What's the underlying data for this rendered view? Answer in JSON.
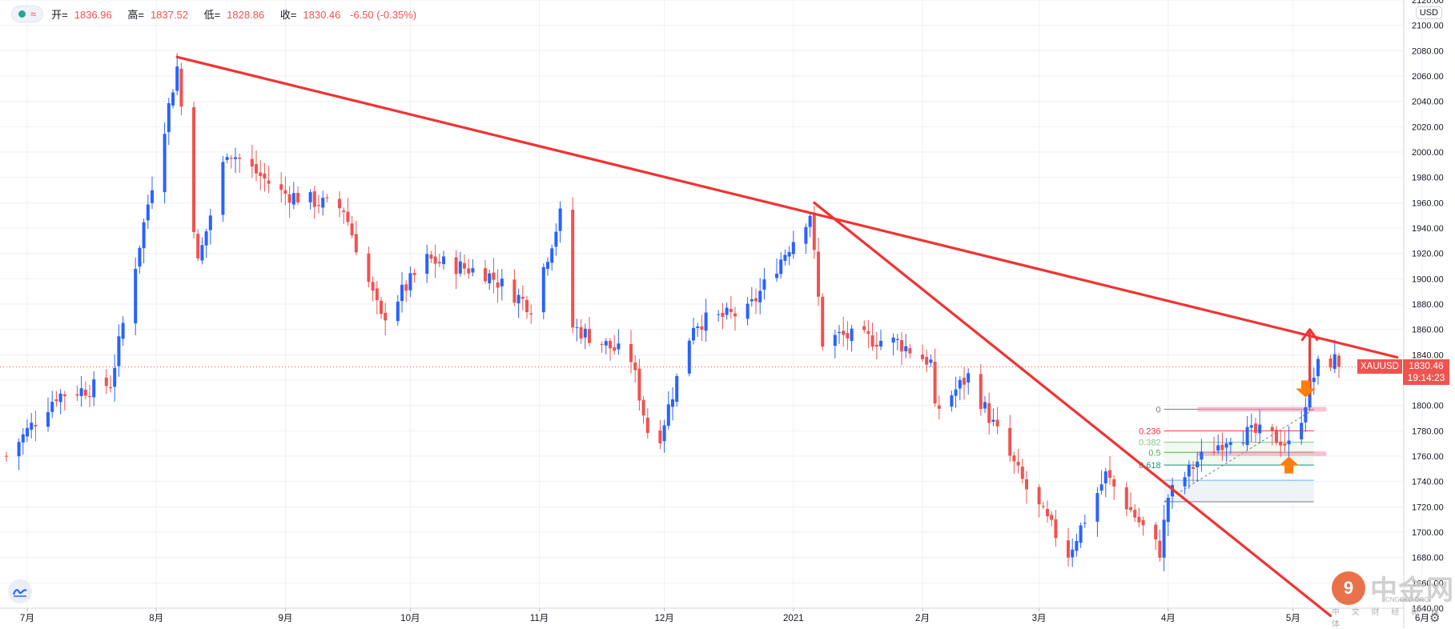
{
  "header": {
    "labels": {
      "open": "开=",
      "high": "高=",
      "low": "低=",
      "close": "收="
    },
    "open": "1836.96",
    "high": "1837.52",
    "low": "1828.86",
    "close": "1830.46",
    "change": "-6.50 (-0.35%)"
  },
  "currency_label": "USD",
  "last_price": {
    "symbol": "XAUUSD",
    "price": "1830.46",
    "countdown": "19:14:23"
  },
  "watermark": {
    "logo_char": "9",
    "name": "中金网",
    "sub": "中 文 财 经 新 媒 体",
    "en": "CNGOLD.ORG"
  },
  "colors": {
    "up": "#2962ff",
    "down": "#ef5350",
    "trendline": "#f23232",
    "grid": "#eef1f6",
    "axis_text": "#131722"
  },
  "chart_data": {
    "type": "candlestick",
    "symbol": "XAUUSD",
    "yaxis": {
      "ylim": [
        1640,
        2120
      ],
      "ticks": [
        "1640.00",
        "1660.00",
        "1680.00",
        "1700.00",
        "1720.00",
        "1740.00",
        "1760.00",
        "1780.00",
        "1800.00",
        "1820.00",
        "1840.00",
        "1860.00",
        "1880.00",
        "1900.00",
        "1920.00",
        "1940.00",
        "1960.00",
        "1980.00",
        "2000.00",
        "2020.00",
        "2040.00",
        "2060.00",
        "2080.00",
        "2100.00",
        "2120.00"
      ]
    },
    "xaxis": {
      "ticks": [
        {
          "label": "7月",
          "date": "2020-07-01"
        },
        {
          "label": "8月",
          "date": "2020-08-01"
        },
        {
          "label": "9月",
          "date": "2020-09-01"
        },
        {
          "label": "10月",
          "date": "2020-10-01"
        },
        {
          "label": "11月",
          "date": "2020-11-01"
        },
        {
          "label": "12月",
          "date": "2020-12-01"
        },
        {
          "label": "2021",
          "date": "2021-01-01"
        },
        {
          "label": "2月",
          "date": "2021-02-01"
        },
        {
          "label": "3月",
          "date": "2021-03-01"
        },
        {
          "label": "4月",
          "date": "2021-04-01"
        },
        {
          "label": "5月",
          "date": "2021-05-01"
        },
        {
          "label": "6月",
          "date": "2021-06-01"
        }
      ]
    },
    "anchors": [
      {
        "date": "2020-06-26",
        "close": 1760
      },
      {
        "date": "2020-07-08",
        "close": 1808
      },
      {
        "date": "2020-07-21",
        "close": 1817
      },
      {
        "date": "2020-07-31",
        "close": 1975
      },
      {
        "date": "2020-08-06",
        "close": 2067
      },
      {
        "date": "2020-08-11",
        "close": 1912
      },
      {
        "date": "2020-08-18",
        "close": 2002
      },
      {
        "date": "2020-08-31",
        "close": 1968
      },
      {
        "date": "2020-09-15",
        "close": 1955
      },
      {
        "date": "2020-09-24",
        "close": 1868
      },
      {
        "date": "2020-10-05",
        "close": 1915
      },
      {
        "date": "2020-10-19",
        "close": 1905
      },
      {
        "date": "2020-10-30",
        "close": 1878
      },
      {
        "date": "2020-11-06",
        "close": 1950
      },
      {
        "date": "2020-11-09",
        "close": 1862
      },
      {
        "date": "2020-11-23",
        "close": 1837
      },
      {
        "date": "2020-11-27",
        "close": 1780
      },
      {
        "date": "2020-11-30",
        "close": 1777
      },
      {
        "date": "2020-12-08",
        "close": 1865
      },
      {
        "date": "2020-12-21",
        "close": 1874
      },
      {
        "date": "2021-01-05",
        "close": 1952
      },
      {
        "date": "2021-01-08",
        "close": 1850
      },
      {
        "date": "2021-01-12",
        "close": 1855
      },
      {
        "date": "2021-01-26",
        "close": 1850
      },
      {
        "date": "2021-02-03",
        "close": 1834
      },
      {
        "date": "2021-02-04",
        "close": 1795
      },
      {
        "date": "2021-02-12",
        "close": 1823
      },
      {
        "date": "2021-02-26",
        "close": 1734
      },
      {
        "date": "2021-03-08",
        "close": 1683
      },
      {
        "date": "2021-03-17",
        "close": 1745
      },
      {
        "date": "2021-03-30",
        "close": 1685
      },
      {
        "date": "2021-04-01",
        "close": 1728
      },
      {
        "date": "2021-04-08",
        "close": 1756
      },
      {
        "date": "2021-04-16",
        "close": 1777
      },
      {
        "date": "2021-04-23",
        "close": 1778
      },
      {
        "date": "2021-04-28",
        "close": 1773
      },
      {
        "date": "2021-04-30",
        "close": 1768
      },
      {
        "date": "2021-05-03",
        "close": 1792
      },
      {
        "date": "2021-05-05",
        "close": 1815
      },
      {
        "date": "2021-05-07",
        "close": 1831
      },
      {
        "date": "2021-05-11",
        "close": 1836
      },
      {
        "date": "2021-05-12",
        "close": 1830
      }
    ],
    "trendlines": [
      {
        "from": {
          "date": "2020-08-06",
          "price": 2075
        },
        "to": {
          "date": "2021-05-26",
          "price": 1838
        },
        "color": "#f23232"
      },
      {
        "from": {
          "date": "2021-01-06",
          "price": 1960
        },
        "to": {
          "date": "2021-05-10",
          "price": 1634
        },
        "color": "#f23232"
      }
    ],
    "arrow_up": {
      "date": "2021-05-05",
      "from": 1808,
      "to": 1860
    },
    "fibonacci": {
      "from_date": "2021-03-31",
      "to_date": "2021-05-06",
      "levels": [
        {
          "label": "0",
          "price": 1797,
          "color": "#787b86"
        },
        {
          "label": "0.236",
          "price": 1780,
          "color": "#f23645"
        },
        {
          "label": "0.382",
          "price": 1771,
          "color": "#81c784"
        },
        {
          "label": "0.5",
          "price": 1763,
          "color": "#4caf50"
        },
        {
          "label": "0.618",
          "price": 1753,
          "color": "#089981"
        },
        {
          "label": "",
          "price": 1741,
          "color": "#64b5f6"
        },
        {
          "label": "",
          "price": 1724,
          "color": "#787b86"
        }
      ]
    },
    "markers": [
      {
        "date": "2021-05-04",
        "price": 1808,
        "direction": "down"
      },
      {
        "date": "2021-04-30",
        "price": 1758,
        "direction": "up"
      }
    ],
    "highlight_bands": [
      {
        "from_date": "2021-04-08",
        "to_date": "2021-05-09",
        "price": 1797
      },
      {
        "from_date": "2021-04-08",
        "to_date": "2021-05-09",
        "price": 1762
      }
    ],
    "last_price_line": 1830.46
  }
}
